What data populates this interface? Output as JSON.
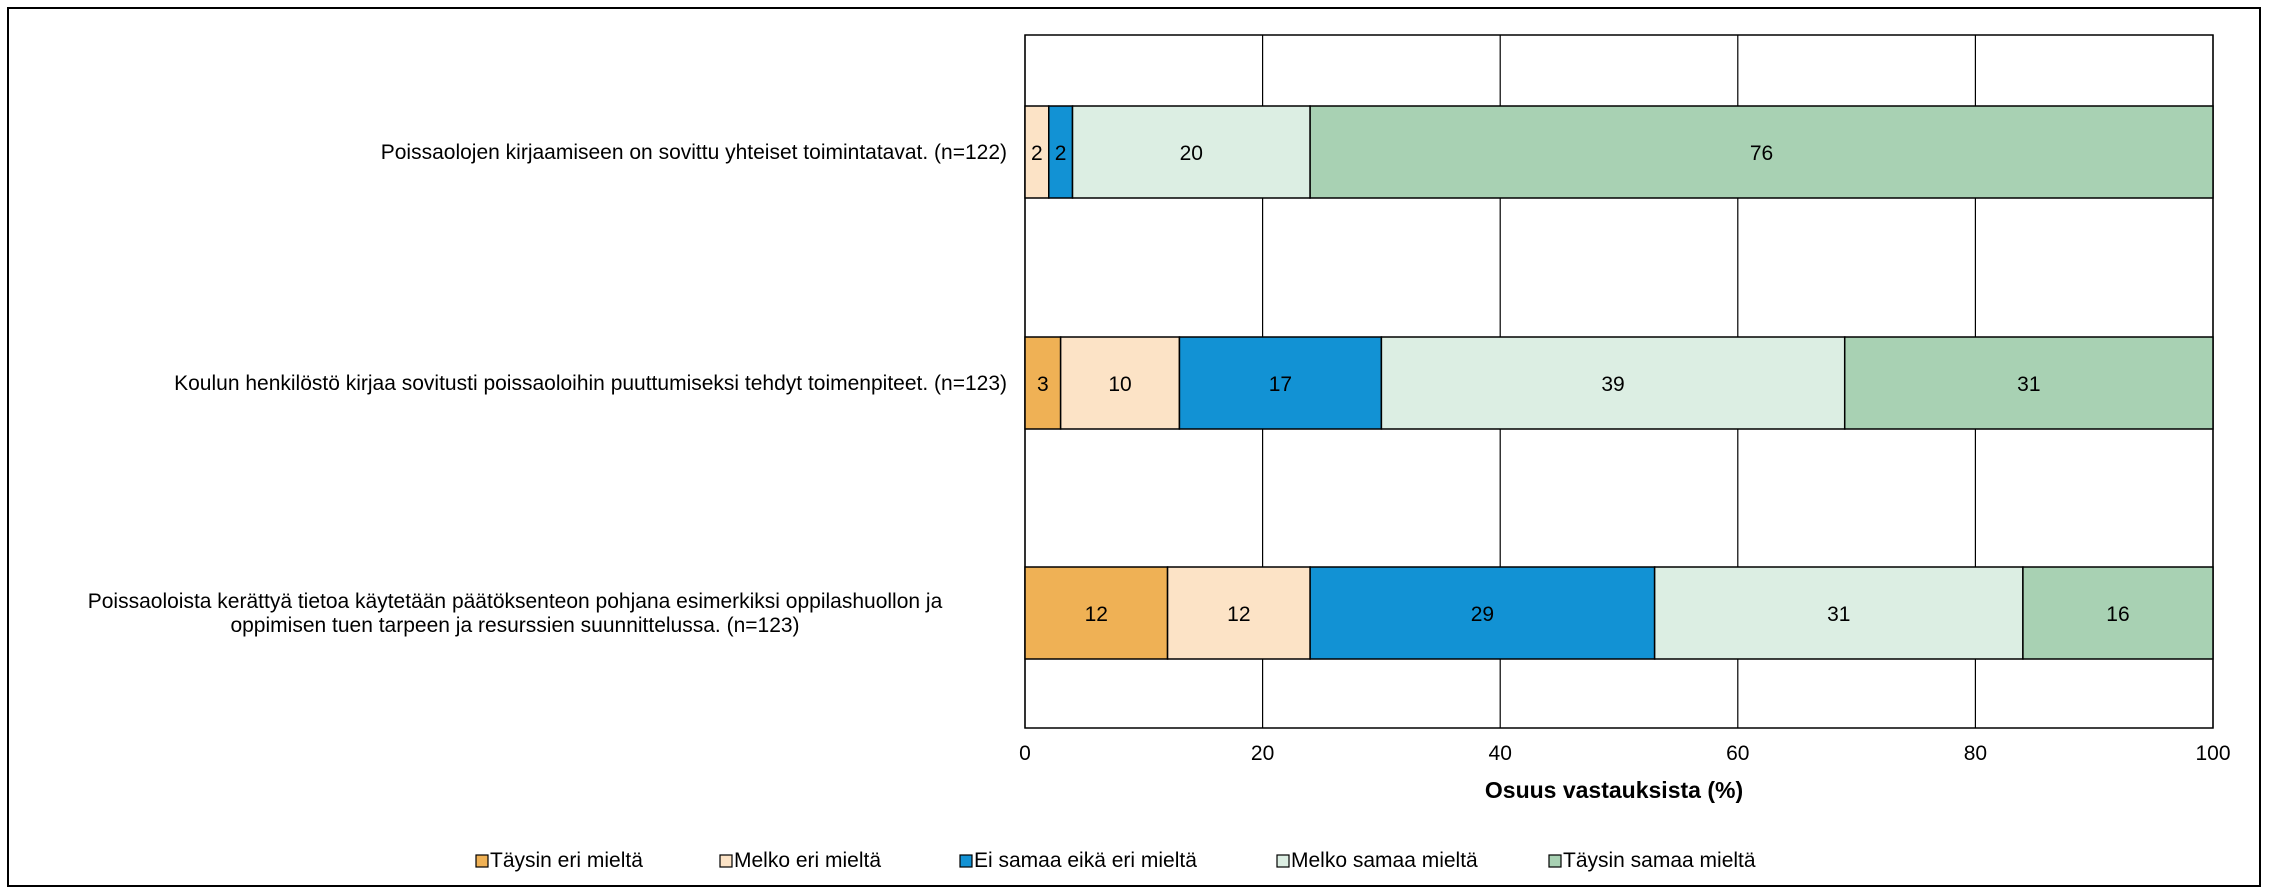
{
  "chart_data": {
    "type": "bar",
    "orientation": "horizontal",
    "stacked": true,
    "xlabel": "Osuus vastauksista (%)",
    "xlim": [
      0,
      100
    ],
    "xticks": [
      "0",
      "20",
      "40",
      "60",
      "80",
      "100"
    ],
    "grid": "vertical",
    "legend_position": "bottom",
    "categories": [
      [
        "Poissaolojen kirjaamiseen on sovittu yhteiset toimintatavat. (n=122)"
      ],
      [
        "Koulun henkilöstö kirjaa sovitusti poissaoloihin puuttumiseksi tehdyt toimenpiteet. (n=123)"
      ],
      [
        "Poissaoloista kerättyä tietoa käytetään päätöksenteon pohjana esimerkiksi oppilashuollon ja",
        "oppimisen tuen tarpeen ja resurssien suunnittelussa. (n=123)"
      ]
    ],
    "series": [
      {
        "name": "Täysin eri mieltä",
        "color": "#EFB155",
        "values": [
          0,
          3,
          12
        ]
      },
      {
        "name": "Melko eri mieltä",
        "color": "#FCE3C6",
        "values": [
          2,
          10,
          12
        ]
      },
      {
        "name": "Ei samaa eikä eri mieltä",
        "color": "#1292D4",
        "values": [
          2,
          17,
          29
        ]
      },
      {
        "name": "Melko samaa mieltä",
        "color": "#DCEEE3",
        "values": [
          20,
          39,
          31
        ]
      },
      {
        "name": "Täysin samaa mieltä",
        "color": "#A8D1B3",
        "values": [
          76,
          31,
          16
        ]
      }
    ]
  }
}
